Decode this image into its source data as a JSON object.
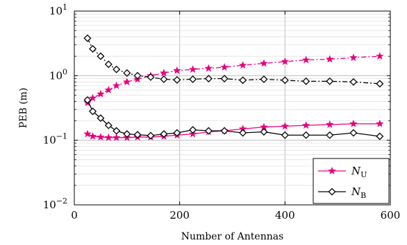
{
  "chart_data": {
    "type": "line",
    "xlabel": "Number of Antennas",
    "ylabel": "PEB (m)",
    "xlim": [
      0,
      600
    ],
    "ylim": [
      0.01,
      10
    ],
    "yscale": "log",
    "grid": true,
    "legend_position": "bottom-right",
    "x_ticks": [
      "0",
      "200",
      "400",
      "600"
    ],
    "y_ticks": [
      {
        "base": "10",
        "exp": "1"
      },
      {
        "base": "10",
        "exp": "0"
      },
      {
        "base": "10",
        "exp": "−1"
      },
      {
        "base": "10",
        "exp": "−2"
      }
    ],
    "legend": [
      {
        "symbol": "N",
        "subscript": "U",
        "color": "#e6007e",
        "marker": "star"
      },
      {
        "symbol": "N",
        "subscript": "B",
        "color": "#000000",
        "marker": "diamond"
      }
    ],
    "series": [
      {
        "group": "N_U",
        "color": "#e6007e",
        "marker": "star",
        "style": "solid",
        "x": [
          25,
          35,
          50,
          65,
          80,
          100,
          120,
          145,
          170,
          195,
          225,
          255,
          285,
          320,
          360,
          400,
          440,
          485,
          530,
          580
        ],
        "y": [
          0.125,
          0.115,
          0.112,
          0.11,
          0.11,
          0.11,
          0.112,
          0.112,
          0.115,
          0.12,
          0.125,
          0.135,
          0.14,
          0.15,
          0.16,
          0.165,
          0.17,
          0.175,
          0.18,
          0.18
        ]
      },
      {
        "group": "N_U",
        "color": "#e6007e",
        "marker": "star",
        "style": "dashdot",
        "x": [
          25,
          35,
          50,
          65,
          80,
          100,
          120,
          145,
          170,
          195,
          225,
          255,
          285,
          320,
          360,
          400,
          440,
          485,
          530,
          580
        ],
        "y": [
          0.38,
          0.45,
          0.52,
          0.6,
          0.7,
          0.8,
          0.88,
          1.0,
          1.1,
          1.2,
          1.25,
          1.3,
          1.35,
          1.45,
          1.55,
          1.65,
          1.75,
          1.8,
          1.9,
          2.0
        ]
      },
      {
        "group": "N_B",
        "color": "#000000",
        "marker": "diamond",
        "style": "solid",
        "x": [
          25,
          35,
          50,
          65,
          80,
          100,
          120,
          145,
          170,
          195,
          225,
          255,
          285,
          320,
          360,
          400,
          440,
          485,
          530,
          580
        ],
        "y": [
          0.42,
          0.28,
          0.22,
          0.17,
          0.14,
          0.125,
          0.122,
          0.118,
          0.125,
          0.13,
          0.145,
          0.14,
          0.14,
          0.13,
          0.135,
          0.12,
          0.12,
          0.12,
          0.13,
          0.115
        ]
      },
      {
        "group": "N_B",
        "color": "#000000",
        "marker": "diamond",
        "style": "dashdot",
        "x": [
          25,
          35,
          50,
          65,
          80,
          100,
          120,
          145,
          170,
          195,
          225,
          255,
          285,
          320,
          360,
          400,
          440,
          485,
          530,
          580
        ],
        "y": [
          3.8,
          2.6,
          2.0,
          1.5,
          1.25,
          1.1,
          1.0,
          0.95,
          0.88,
          0.86,
          0.88,
          0.9,
          0.9,
          0.85,
          0.88,
          0.85,
          0.82,
          0.82,
          0.8,
          0.75
        ]
      }
    ]
  }
}
